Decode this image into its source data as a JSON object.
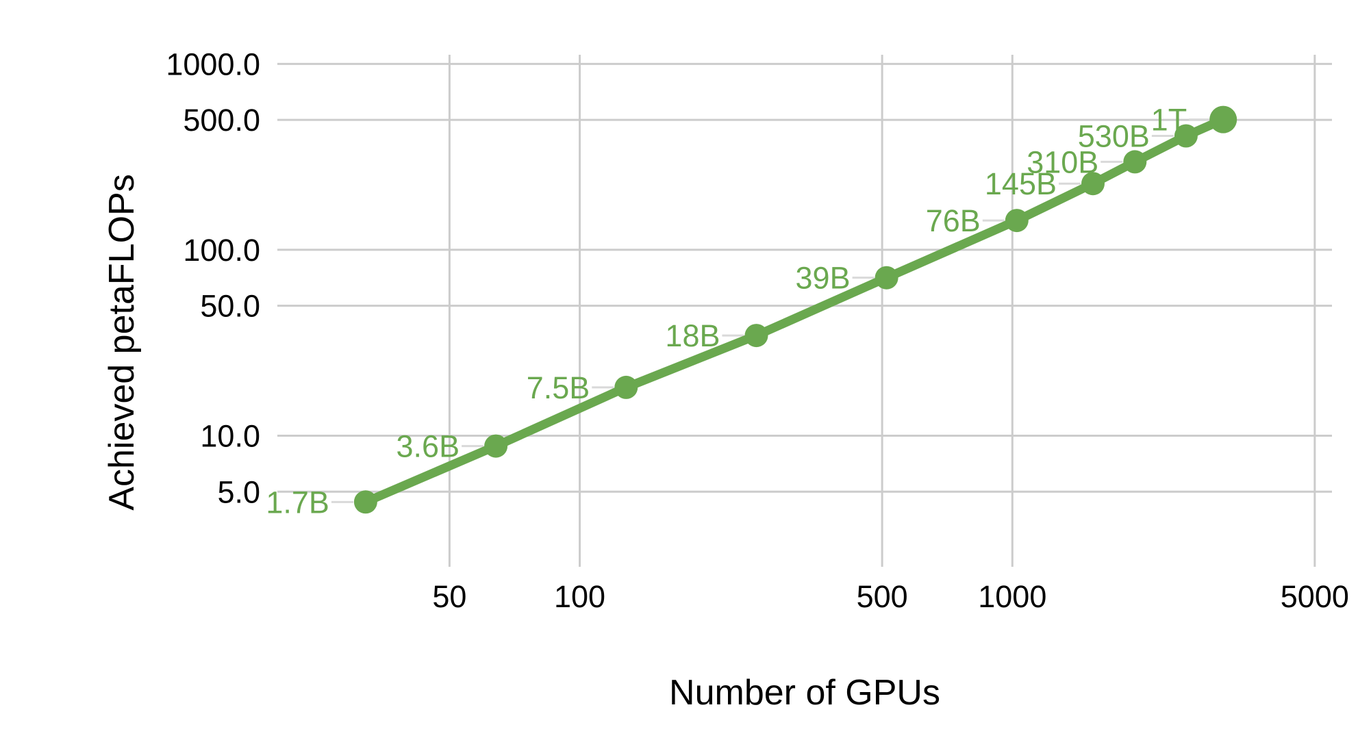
{
  "chart_data": {
    "type": "line",
    "title": "",
    "xlabel": "Number of GPUs",
    "ylabel": "Achieved petaFLOPs",
    "x_scale": "log",
    "y_scale": "log",
    "x_range": [
      20,
      5480
    ],
    "y_range": [
      2.5,
      1120
    ],
    "grid": true,
    "legend_position": "none",
    "x_ticks": [
      {
        "value": 50,
        "label": "50"
      },
      {
        "value": 100,
        "label": "100"
      },
      {
        "value": 500,
        "label": "500"
      },
      {
        "value": 1000,
        "label": "1000"
      },
      {
        "value": 5000,
        "label": "5000"
      }
    ],
    "y_ticks": [
      {
        "value": 1000,
        "label": "1000.0"
      },
      {
        "value": 500,
        "label": "500.0"
      },
      {
        "value": 100,
        "label": "100.0"
      },
      {
        "value": 50,
        "label": "50.0"
      },
      {
        "value": 10,
        "label": "10.0"
      },
      {
        "value": 5,
        "label": "5.0"
      }
    ],
    "series": [
      {
        "name": "Achieved petaFLOPs",
        "color": "#6aa84f",
        "points": [
          {
            "x": 32,
            "y": 4.4,
            "label": "1.7B"
          },
          {
            "x": 64,
            "y": 8.8,
            "label": "3.6B"
          },
          {
            "x": 128,
            "y": 18.2,
            "label": "7.5B"
          },
          {
            "x": 256,
            "y": 34.6,
            "label": "18B"
          },
          {
            "x": 512,
            "y": 70.8,
            "label": "39B"
          },
          {
            "x": 1024,
            "y": 143.8,
            "label": "76B"
          },
          {
            "x": 1536,
            "y": 227.1,
            "label": "145B"
          },
          {
            "x": 1920,
            "y": 297.4,
            "label": "310B"
          },
          {
            "x": 2520,
            "y": 410.2,
            "label": "530B"
          },
          {
            "x": 3072,
            "y": 502.0,
            "label": "1T"
          }
        ]
      }
    ],
    "colors": {
      "series": "#6aa84f",
      "gridline": "#cccccc",
      "leader_line": "#d9d9d9",
      "axis_text": "#000000"
    }
  }
}
